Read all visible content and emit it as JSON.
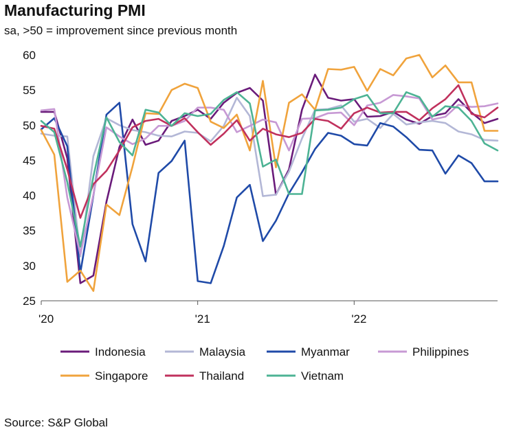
{
  "title": "Manufacturing PMI",
  "subtitle": "sa, >50 = improvement since previous month",
  "source": "Source: S&P Global",
  "chart_data": {
    "type": "line",
    "title": "Manufacturing PMI",
    "subtitle": "sa, >50 = improvement since previous month",
    "xlabel": "",
    "ylabel": "",
    "ylim": [
      25,
      60
    ],
    "yticks": [
      25,
      30,
      35,
      40,
      45,
      50,
      55,
      60
    ],
    "xticks": [
      {
        "label": "'20",
        "index": 0
      },
      {
        "label": "'21",
        "index": 12
      },
      {
        "label": "'22",
        "index": 24
      }
    ],
    "x": [
      "Jan-20",
      "Feb-20",
      "Mar-20",
      "Apr-20",
      "May-20",
      "Jun-20",
      "Jul-20",
      "Aug-20",
      "Sep-20",
      "Oct-20",
      "Nov-20",
      "Dec-20",
      "Jan-21",
      "Feb-21",
      "Mar-21",
      "Apr-21",
      "May-21",
      "Jun-21",
      "Jul-21",
      "Aug-21",
      "Sep-21",
      "Oct-21",
      "Nov-21",
      "Dec-21",
      "Jan-22",
      "Feb-22",
      "Mar-22",
      "Apr-22",
      "May-22",
      "Jun-22",
      "Jul-22",
      "Aug-22",
      "Sep-22",
      "Oct-22",
      "Nov-22",
      "Dec-22"
    ],
    "legend_position": "bottom",
    "grid": false,
    "series": [
      {
        "name": "Indonesia",
        "color": "#6a1b7a",
        "values": [
          51.9,
          51.9,
          45.3,
          27.5,
          28.6,
          39.1,
          46.9,
          50.8,
          47.2,
          47.8,
          50.6,
          51.3,
          52.2,
          50.9,
          53.2,
          54.6,
          55.3,
          53.5,
          40.1,
          43.7,
          52.2,
          57.2,
          53.9,
          53.5,
          53.7,
          51.2,
          51.3,
          51.9,
          50.8,
          50.2,
          51.3,
          51.7,
          53.7,
          51.8,
          50.3,
          50.9
        ]
      },
      {
        "name": "Malaysia",
        "color": "#b3b7d6",
        "values": [
          48.8,
          48.5,
          48.4,
          31.3,
          45.6,
          51.0,
          50.0,
          49.3,
          49.0,
          48.5,
          48.4,
          49.1,
          48.9,
          47.7,
          49.9,
          53.9,
          51.3,
          39.9,
          40.1,
          43.4,
          48.1,
          52.2,
          52.3,
          52.8,
          50.5,
          50.9,
          49.6,
          51.6,
          50.1,
          50.4,
          50.6,
          50.3,
          49.1,
          48.7,
          47.9,
          47.8
        ]
      },
      {
        "name": "Myanmar",
        "color": "#1f4aa8",
        "values": [
          49.4,
          51.0,
          47.0,
          29.0,
          40.0,
          51.5,
          53.2,
          35.9,
          30.6,
          43.2,
          44.9,
          47.8,
          27.8,
          27.5,
          32.8,
          39.7,
          41.5,
          33.5,
          36.4,
          40.3,
          43.3,
          46.6,
          48.9,
          48.5,
          47.3,
          47.1,
          50.3,
          49.8,
          48.3,
          46.5,
          46.4,
          43.1,
          45.7,
          44.6,
          42.0,
          42.0
        ]
      },
      {
        "name": "Philippines",
        "color": "#c799d4",
        "values": [
          52.1,
          52.3,
          39.7,
          31.6,
          40.1,
          49.7,
          48.4,
          47.3,
          48.1,
          49.9,
          49.9,
          50.6,
          52.5,
          52.5,
          52.2,
          49.0,
          49.9,
          50.8,
          50.4,
          46.4,
          50.9,
          51.0,
          51.7,
          51.8,
          50.0,
          52.8,
          53.2,
          54.3,
          54.1,
          53.8,
          50.8,
          51.2,
          52.9,
          52.6,
          52.7,
          53.1
        ]
      },
      {
        "name": "Singapore",
        "color": "#f0a33c",
        "values": [
          49.3,
          45.8,
          27.7,
          29.3,
          26.4,
          38.7,
          37.2,
          44.1,
          51.7,
          51.6,
          55.0,
          55.9,
          55.3,
          50.5,
          49.6,
          51.5,
          46.4,
          56.3,
          44.0,
          53.2,
          54.4,
          52.2,
          58.0,
          57.9,
          58.3,
          54.9,
          58.0,
          57.1,
          59.5,
          60.0,
          56.8,
          58.5,
          56.1,
          56.1,
          49.2,
          49.2
        ]
      },
      {
        "name": "Thailand",
        "color": "#c0315d",
        "values": [
          49.9,
          49.5,
          43.7,
          36.8,
          41.6,
          43.5,
          46.4,
          49.7,
          50.6,
          50.9,
          49.9,
          51.0,
          49.0,
          47.2,
          48.8,
          50.7,
          47.8,
          49.5,
          48.7,
          48.3,
          48.9,
          50.9,
          50.6,
          49.5,
          51.7,
          52.5,
          51.8,
          51.9,
          51.9,
          50.7,
          52.4,
          53.7,
          55.7,
          51.6,
          51.1,
          52.5
        ]
      },
      {
        "name": "Vietnam",
        "color": "#4db394",
        "values": [
          50.6,
          49.0,
          41.9,
          32.7,
          42.7,
          51.1,
          47.6,
          45.7,
          52.2,
          51.8,
          49.9,
          51.7,
          51.3,
          51.6,
          53.6,
          54.7,
          53.1,
          44.1,
          45.1,
          40.2,
          40.2,
          52.1,
          52.2,
          52.5,
          53.7,
          54.3,
          51.7,
          51.7,
          54.7,
          54.0,
          51.2,
          52.7,
          52.5,
          50.6,
          47.4,
          46.4
        ]
      }
    ]
  }
}
